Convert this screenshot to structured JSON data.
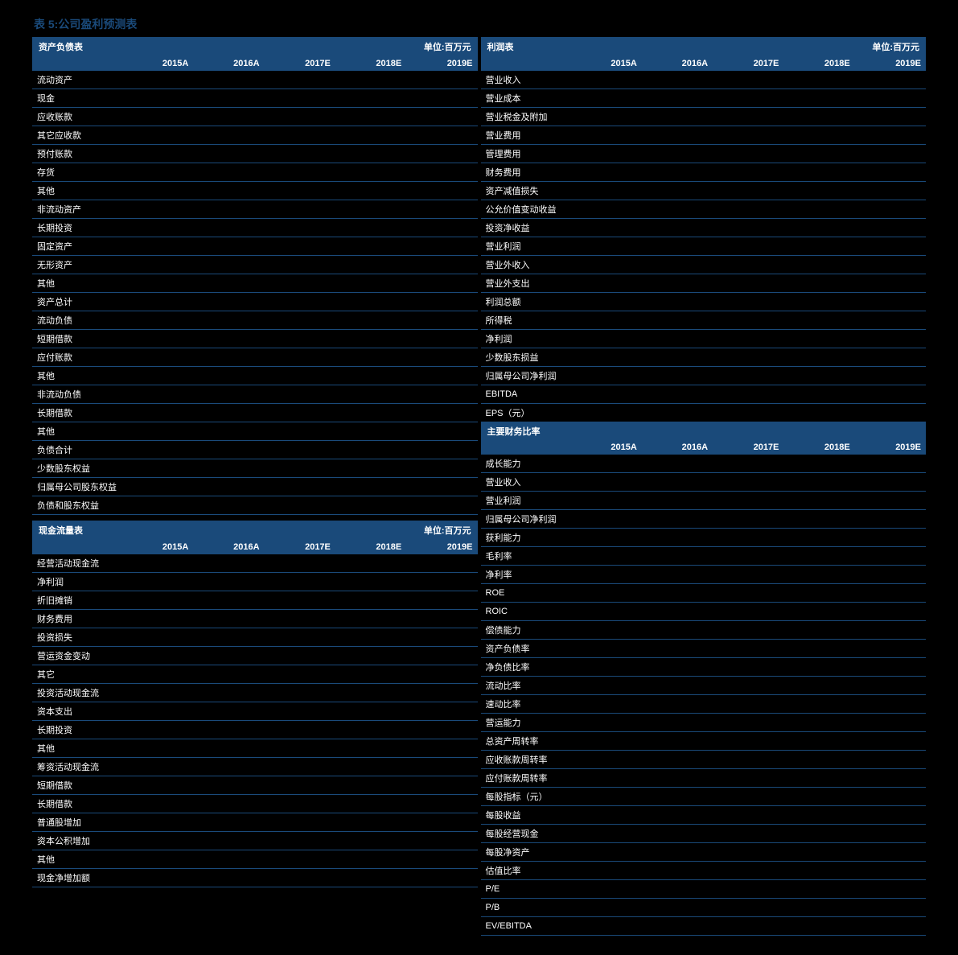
{
  "title": "表 5:公司盈利预测表",
  "unit_label": "单位:百万元",
  "years": [
    "2015A",
    "2016A",
    "2017E",
    "2018E",
    "2019E"
  ],
  "colors": {
    "header_bg": "#1a4a7a",
    "page_bg": "#000000",
    "text": "#ffffff",
    "border": "#1a4a7a",
    "title": "#1a4a7a"
  },
  "balance_sheet": {
    "title": "资产负债表",
    "rows": [
      {
        "label": "流动资产",
        "v": [
          "",
          "",
          "",
          "",
          ""
        ]
      },
      {
        "label": "现金",
        "v": [
          "",
          "",
          "",
          "",
          ""
        ]
      },
      {
        "label": "应收账款",
        "v": [
          "",
          "",
          "",
          "",
          ""
        ]
      },
      {
        "label": "其它应收款",
        "v": [
          "",
          "",
          "",
          "",
          ""
        ]
      },
      {
        "label": "预付账款",
        "v": [
          "",
          "",
          "",
          "",
          ""
        ]
      },
      {
        "label": "存货",
        "v": [
          "",
          "",
          "",
          "",
          ""
        ]
      },
      {
        "label": "其他",
        "v": [
          "",
          "",
          "",
          "",
          ""
        ]
      },
      {
        "label": "非流动资产",
        "v": [
          "",
          "",
          "",
          "",
          ""
        ]
      },
      {
        "label": "长期投资",
        "v": [
          "",
          "",
          "",
          "",
          ""
        ]
      },
      {
        "label": "固定资产",
        "v": [
          "",
          "",
          "",
          "",
          ""
        ]
      },
      {
        "label": "无形资产",
        "v": [
          "",
          "",
          "",
          "",
          ""
        ]
      },
      {
        "label": "其他",
        "v": [
          "",
          "",
          "",
          "",
          ""
        ]
      },
      {
        "label": "资产总计",
        "v": [
          "",
          "",
          "",
          "",
          ""
        ]
      },
      {
        "label": "流动负债",
        "v": [
          "",
          "",
          "",
          "",
          ""
        ]
      },
      {
        "label": "短期借款",
        "v": [
          "",
          "",
          "",
          "",
          ""
        ]
      },
      {
        "label": "应付账款",
        "v": [
          "",
          "",
          "",
          "",
          ""
        ]
      },
      {
        "label": "其他",
        "v": [
          "",
          "",
          "",
          "",
          ""
        ]
      },
      {
        "label": "非流动负债",
        "v": [
          "",
          "",
          "",
          "",
          ""
        ]
      },
      {
        "label": "长期借款",
        "v": [
          "",
          "",
          "",
          "",
          ""
        ]
      },
      {
        "label": "其他",
        "v": [
          "",
          "",
          "",
          "",
          ""
        ]
      },
      {
        "label": "负债合计",
        "v": [
          "",
          "",
          "",
          "",
          ""
        ]
      },
      {
        "label": "少数股东权益",
        "v": [
          "",
          "",
          "",
          "",
          ""
        ]
      },
      {
        "label": "归属母公司股东权益",
        "v": [
          "",
          "",
          "",
          "",
          ""
        ]
      },
      {
        "label": "负债和股东权益",
        "v": [
          "",
          "",
          "",
          "",
          ""
        ]
      }
    ]
  },
  "income_statement": {
    "title": "利润表",
    "rows": [
      {
        "label": "营业收入",
        "v": [
          "",
          "",
          "",
          "",
          ""
        ]
      },
      {
        "label": "营业成本",
        "v": [
          "",
          "",
          "",
          "",
          ""
        ]
      },
      {
        "label": "营业税金及附加",
        "v": [
          "",
          "",
          "",
          "",
          ""
        ]
      },
      {
        "label": "营业费用",
        "v": [
          "",
          "",
          "",
          "",
          ""
        ]
      },
      {
        "label": "管理费用",
        "v": [
          "",
          "",
          "",
          "",
          ""
        ]
      },
      {
        "label": "财务费用",
        "v": [
          "",
          "",
          "",
          "",
          ""
        ]
      },
      {
        "label": "资产减值损失",
        "v": [
          "",
          "",
          "",
          "",
          ""
        ]
      },
      {
        "label": "公允价值变动收益",
        "v": [
          "",
          "",
          "",
          "",
          ""
        ]
      },
      {
        "label": "投资净收益",
        "v": [
          "",
          "",
          "",
          "",
          ""
        ]
      },
      {
        "label": "营业利润",
        "v": [
          "",
          "",
          "",
          "",
          ""
        ]
      },
      {
        "label": "营业外收入",
        "v": [
          "",
          "",
          "",
          "",
          ""
        ]
      },
      {
        "label": "营业外支出",
        "v": [
          "",
          "",
          "",
          "",
          ""
        ]
      },
      {
        "label": "利润总额",
        "v": [
          "",
          "",
          "",
          "",
          ""
        ]
      },
      {
        "label": "所得税",
        "v": [
          "",
          "",
          "",
          "",
          ""
        ]
      },
      {
        "label": "净利润",
        "v": [
          "",
          "",
          "",
          "",
          ""
        ]
      },
      {
        "label": "少数股东损益",
        "v": [
          "",
          "",
          "",
          "",
          ""
        ]
      },
      {
        "label": "归属母公司净利润",
        "v": [
          "",
          "",
          "",
          "",
          ""
        ]
      },
      {
        "label": "EBITDA",
        "v": [
          "",
          "",
          "",
          "",
          ""
        ]
      },
      {
        "label": "EPS（元）",
        "v": [
          "",
          "",
          "",
          "",
          ""
        ]
      }
    ]
  },
  "cash_flow": {
    "title": "现金流量表",
    "rows": [
      {
        "label": "经营活动现金流",
        "v": [
          "",
          "",
          "",
          "",
          ""
        ]
      },
      {
        "label": "净利润",
        "v": [
          "",
          "",
          "",
          "",
          ""
        ]
      },
      {
        "label": "折旧摊销",
        "v": [
          "",
          "",
          "",
          "",
          ""
        ]
      },
      {
        "label": "财务费用",
        "v": [
          "",
          "",
          "",
          "",
          ""
        ]
      },
      {
        "label": "投资损失",
        "v": [
          "",
          "",
          "",
          "",
          ""
        ]
      },
      {
        "label": "营运资金变动",
        "v": [
          "",
          "",
          "",
          "",
          ""
        ]
      },
      {
        "label": "其它",
        "v": [
          "",
          "",
          "",
          "",
          ""
        ]
      },
      {
        "label": "投资活动现金流",
        "v": [
          "",
          "",
          "",
          "",
          ""
        ]
      },
      {
        "label": "资本支出",
        "v": [
          "",
          "",
          "",
          "",
          ""
        ]
      },
      {
        "label": "长期投资",
        "v": [
          "",
          "",
          "",
          "",
          ""
        ]
      },
      {
        "label": "其他",
        "v": [
          "",
          "",
          "",
          "",
          ""
        ]
      },
      {
        "label": "筹资活动现金流",
        "v": [
          "",
          "",
          "",
          "",
          ""
        ]
      },
      {
        "label": "短期借款",
        "v": [
          "",
          "",
          "",
          "",
          ""
        ]
      },
      {
        "label": "长期借款",
        "v": [
          "",
          "",
          "",
          "",
          ""
        ]
      },
      {
        "label": "普通股增加",
        "v": [
          "",
          "",
          "",
          "",
          ""
        ]
      },
      {
        "label": "资本公积增加",
        "v": [
          "",
          "",
          "",
          "",
          ""
        ]
      },
      {
        "label": "其他",
        "v": [
          "",
          "",
          "",
          "",
          ""
        ]
      },
      {
        "label": "现金净增加额",
        "v": [
          "",
          "",
          "",
          "",
          ""
        ]
      }
    ]
  },
  "ratios": {
    "title": "主要财务比率",
    "rows": [
      {
        "label": "成长能力",
        "v": [
          "",
          "",
          "",
          "",
          ""
        ]
      },
      {
        "label": "营业收入",
        "v": [
          "",
          "",
          "",
          "",
          ""
        ]
      },
      {
        "label": "营业利润",
        "v": [
          "",
          "",
          "",
          "",
          ""
        ]
      },
      {
        "label": "归属母公司净利润",
        "v": [
          "",
          "",
          "",
          "",
          ""
        ]
      },
      {
        "label": "获利能力",
        "v": [
          "",
          "",
          "",
          "",
          ""
        ]
      },
      {
        "label": "毛利率",
        "v": [
          "",
          "",
          "",
          "",
          ""
        ]
      },
      {
        "label": "净利率",
        "v": [
          "",
          "",
          "",
          "",
          ""
        ]
      },
      {
        "label": "ROE",
        "v": [
          "",
          "",
          "",
          "",
          ""
        ]
      },
      {
        "label": "ROIC",
        "v": [
          "",
          "",
          "",
          "",
          ""
        ]
      },
      {
        "label": "偿债能力",
        "v": [
          "",
          "",
          "",
          "",
          ""
        ]
      },
      {
        "label": "资产负债率",
        "v": [
          "",
          "",
          "",
          "",
          ""
        ]
      },
      {
        "label": "净负债比率",
        "v": [
          "",
          "",
          "",
          "",
          ""
        ]
      },
      {
        "label": "流动比率",
        "v": [
          "",
          "",
          "",
          "",
          ""
        ]
      },
      {
        "label": "速动比率",
        "v": [
          "",
          "",
          "",
          "",
          ""
        ]
      },
      {
        "label": "营运能力",
        "v": [
          "",
          "",
          "",
          "",
          ""
        ]
      },
      {
        "label": "总资产周转率",
        "v": [
          "",
          "",
          "",
          "",
          ""
        ]
      },
      {
        "label": "应收账款周转率",
        "v": [
          "",
          "",
          "",
          "",
          ""
        ]
      },
      {
        "label": "应付账款周转率",
        "v": [
          "",
          "",
          "",
          "",
          ""
        ]
      },
      {
        "label": "每股指标（元）",
        "v": [
          "",
          "",
          "",
          "",
          ""
        ]
      },
      {
        "label": "每股收益",
        "v": [
          "",
          "",
          "",
          "",
          ""
        ]
      },
      {
        "label": "每股经营现金",
        "v": [
          "",
          "",
          "",
          "",
          ""
        ]
      },
      {
        "label": "每股净资产",
        "v": [
          "",
          "",
          "",
          "",
          ""
        ]
      },
      {
        "label": "估值比率",
        "v": [
          "",
          "",
          "",
          "",
          ""
        ]
      },
      {
        "label": "P/E",
        "v": [
          "",
          "",
          "",
          "",
          ""
        ]
      },
      {
        "label": "P/B",
        "v": [
          "",
          "",
          "",
          "",
          ""
        ]
      },
      {
        "label": "EV/EBITDA",
        "v": [
          "",
          "",
          "",
          "",
          ""
        ]
      }
    ]
  }
}
